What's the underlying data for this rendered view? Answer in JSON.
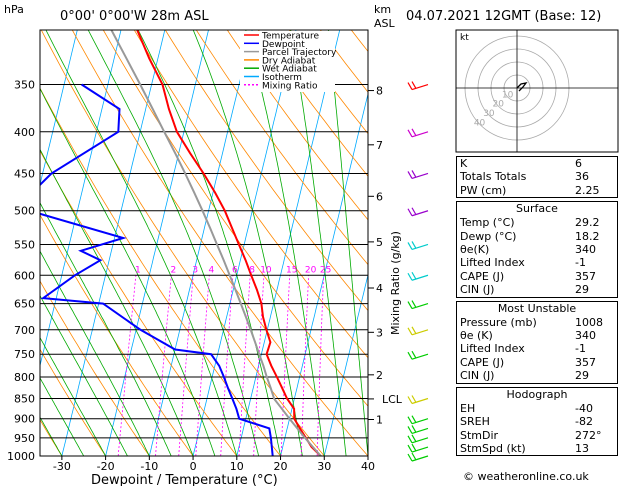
{
  "header": {
    "location": "0°00' 0°00'W 28m ASL",
    "date": "04.07.2021 12GMT (Base: 12)",
    "hpa_label": "hPa",
    "km_label": "km",
    "asl_label": "ASL"
  },
  "footer": {
    "credit": "© weatheronline.co.uk"
  },
  "legend": [
    {
      "name": "Temperature",
      "color": "#ff0000"
    },
    {
      "name": "Dewpoint",
      "color": "#0000ff"
    },
    {
      "name": "Parcel Trajectory",
      "color": "#999999"
    },
    {
      "name": "Dry Adiabat",
      "color": "#ff8800"
    },
    {
      "name": "Wet Adiabat",
      "color": "#00aa00"
    },
    {
      "name": "Isotherm",
      "color": "#00aaff"
    },
    {
      "name": "Mixing Ratio",
      "color": "#ff00ff"
    }
  ],
  "chart_data": {
    "type": "line",
    "xlabel": "Dewpoint / Temperature (°C)",
    "ylabel_right": "Mixing Ratio (g/kg)",
    "x_ticks": [
      -30,
      -20,
      -10,
      0,
      10,
      20,
      30,
      40
    ],
    "xlim": [
      -35,
      40
    ],
    "pressure_ticks": [
      350,
      400,
      450,
      500,
      550,
      600,
      650,
      700,
      750,
      800,
      850,
      900,
      950,
      1000
    ],
    "plim": [
      300,
      1000
    ],
    "skew_deg_per_decade": 45,
    "km_ticks": [
      {
        "label": "8",
        "p": 356
      },
      {
        "label": "7",
        "p": 415
      },
      {
        "label": "6",
        "p": 480
      },
      {
        "label": "5",
        "p": 546
      },
      {
        "label": "4",
        "p": 622
      },
      {
        "label": "3",
        "p": 705
      },
      {
        "label": "2",
        "p": 795
      },
      {
        "label": "LCL",
        "p": 851
      },
      {
        "label": "1",
        "p": 902
      }
    ],
    "mixing_ratio_labels": [
      "1",
      "2",
      "3",
      "4",
      "6",
      "8",
      "10",
      "15",
      "20",
      "25"
    ],
    "series": [
      {
        "name": "Temperature",
        "color": "#ff0000",
        "points": [
          [
            1000,
            29.2
          ],
          [
            975,
            26.6
          ],
          [
            950,
            24.8
          ],
          [
            925,
            22.9
          ],
          [
            900,
            21.1
          ],
          [
            875,
            20.5
          ],
          [
            850,
            18.3
          ],
          [
            825,
            16.6
          ],
          [
            800,
            14.8
          ],
          [
            775,
            12.9
          ],
          [
            750,
            11.2
          ],
          [
            725,
            11.4
          ],
          [
            700,
            9.8
          ],
          [
            675,
            8.3
          ],
          [
            650,
            7.2
          ],
          [
            625,
            5.4
          ],
          [
            600,
            3.3
          ],
          [
            575,
            1.2
          ],
          [
            550,
            -1.2
          ],
          [
            525,
            -3.7
          ],
          [
            500,
            -6.3
          ],
          [
            475,
            -9.5
          ],
          [
            450,
            -13.2
          ],
          [
            425,
            -17.4
          ],
          [
            400,
            -21.6
          ],
          [
            375,
            -24.7
          ],
          [
            350,
            -27.5
          ],
          [
            325,
            -32.0
          ],
          [
            300,
            -36.3
          ]
        ]
      },
      {
        "name": "Dewpoint",
        "color": "#0000ff",
        "points": [
          [
            1000,
            18.2
          ],
          [
            975,
            17.5
          ],
          [
            950,
            16.8
          ],
          [
            925,
            15.9
          ],
          [
            900,
            8.5
          ],
          [
            875,
            7.3
          ],
          [
            850,
            5.8
          ],
          [
            825,
            4.2
          ],
          [
            800,
            2.7
          ],
          [
            775,
            1.0
          ],
          [
            750,
            -1.5
          ],
          [
            740,
            -10.0
          ],
          [
            700,
            -19.0
          ],
          [
            650,
            -29.0
          ],
          [
            640,
            -43.0
          ],
          [
            600,
            -37.0
          ],
          [
            575,
            -32.0
          ],
          [
            560,
            -37.0
          ],
          [
            540,
            -28.0
          ],
          [
            500,
            -51.0
          ],
          [
            480,
            -52.0
          ],
          [
            450,
            -48.0
          ],
          [
            400,
            -35.0
          ],
          [
            375,
            -36.0
          ],
          [
            350,
            -46.0
          ]
        ]
      },
      {
        "name": "Parcel Trajectory",
        "color": "#999999",
        "points": [
          [
            1000,
            29.2
          ],
          [
            975,
            26.9
          ],
          [
            950,
            24.6
          ],
          [
            925,
            22.3
          ],
          [
            900,
            20.0
          ],
          [
            875,
            17.7
          ],
          [
            851,
            15.4
          ],
          [
            825,
            14.0
          ],
          [
            800,
            12.5
          ],
          [
            775,
            11.1
          ],
          [
            750,
            9.5
          ],
          [
            725,
            7.9
          ],
          [
            700,
            6.2
          ],
          [
            675,
            4.4
          ],
          [
            650,
            2.5
          ],
          [
            625,
            0.5
          ],
          [
            600,
            -1.6
          ],
          [
            575,
            -3.8
          ],
          [
            550,
            -6.2
          ],
          [
            525,
            -8.7
          ],
          [
            500,
            -11.4
          ],
          [
            475,
            -14.3
          ],
          [
            450,
            -17.4
          ],
          [
            425,
            -20.8
          ],
          [
            400,
            -24.5
          ],
          [
            375,
            -28.4
          ],
          [
            350,
            -32.6
          ],
          [
            325,
            -37.2
          ],
          [
            300,
            -42.2
          ]
        ]
      }
    ],
    "wind_barbs": [
      {
        "p": 1000,
        "color": "#00cc00"
      },
      {
        "p": 975,
        "color": "#00cc00"
      },
      {
        "p": 950,
        "color": "#00cc00"
      },
      {
        "p": 925,
        "color": "#00cc00"
      },
      {
        "p": 900,
        "color": "#00cc00"
      },
      {
        "p": 850,
        "color": "#cccc00"
      },
      {
        "p": 750,
        "color": "#00cc00"
      },
      {
        "p": 700,
        "color": "#cccc00"
      },
      {
        "p": 650,
        "color": "#00cc00"
      },
      {
        "p": 600,
        "color": "#00cccc"
      },
      {
        "p": 550,
        "color": "#00cccc"
      },
      {
        "p": 500,
        "color": "#9900cc"
      },
      {
        "p": 450,
        "color": "#9900cc"
      },
      {
        "p": 400,
        "color": "#cc00cc"
      },
      {
        "p": 350,
        "color": "#ff0000"
      }
    ],
    "hodograph": {
      "label": "kt",
      "ring_labels": [
        "10",
        "20",
        "30",
        "40"
      ]
    }
  },
  "indices": [
    {
      "label": "K",
      "value": "6"
    },
    {
      "label": "Totals Totals",
      "value": "36"
    },
    {
      "label": "PW (cm)",
      "value": "2.25"
    }
  ],
  "surface": {
    "title": "Surface",
    "rows": [
      {
        "label": "Temp (°C)",
        "value": "29.2"
      },
      {
        "label": "Dewp (°C)",
        "value": "18.2"
      },
      {
        "label": "θe(K)",
        "value": "340"
      },
      {
        "label": "Lifted Index",
        "value": "-1"
      },
      {
        "label": "CAPE (J)",
        "value": "357"
      },
      {
        "label": "CIN (J)",
        "value": "29"
      }
    ]
  },
  "most_unstable": {
    "title": "Most Unstable",
    "rows": [
      {
        "label": "Pressure (mb)",
        "value": "1008"
      },
      {
        "label": "θe (K)",
        "value": "340"
      },
      {
        "label": "Lifted Index",
        "value": "-1"
      },
      {
        "label": "CAPE (J)",
        "value": "357"
      },
      {
        "label": "CIN (J)",
        "value": "29"
      }
    ]
  },
  "hodograph_box": {
    "title": "Hodograph",
    "rows": [
      {
        "label": "EH",
        "value": "-40"
      },
      {
        "label": "SREH",
        "value": "-82"
      },
      {
        "label": "StmDir",
        "value": "272°"
      },
      {
        "label": "StmSpd (kt)",
        "value": "13"
      }
    ]
  }
}
